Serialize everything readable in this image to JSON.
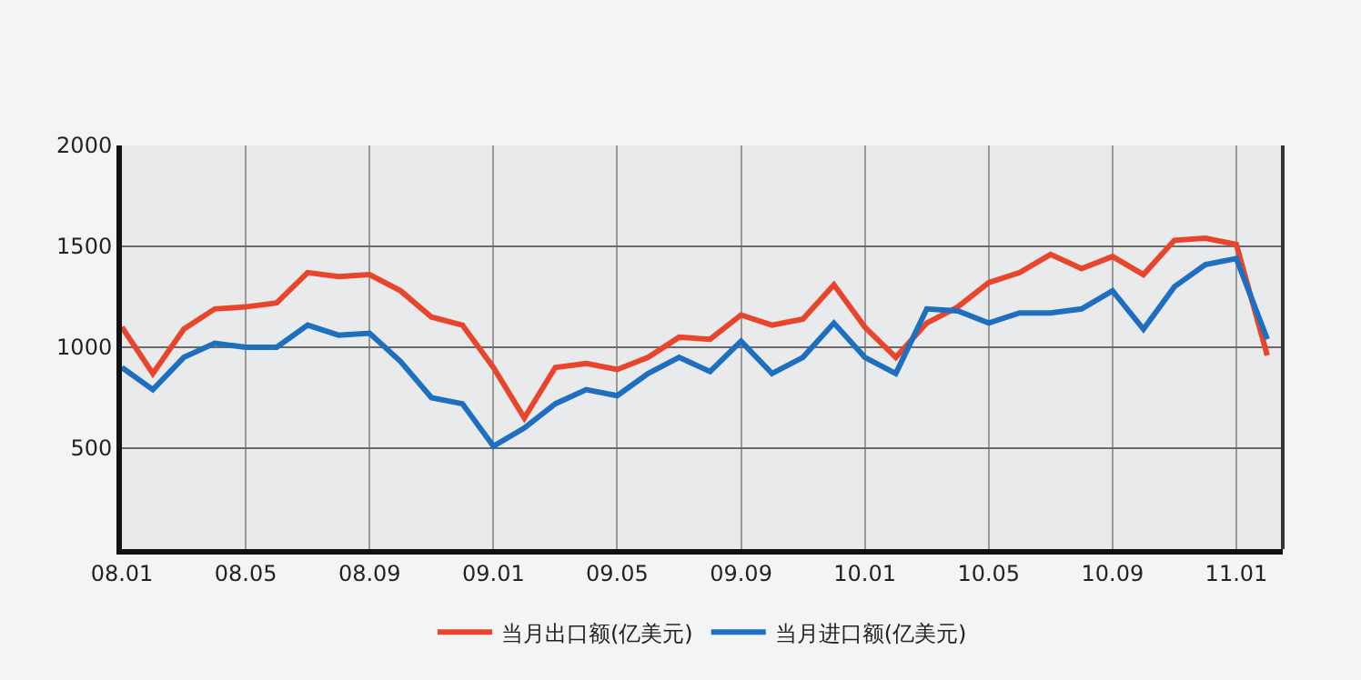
{
  "chart_data": {
    "type": "line",
    "categories": [
      "08.01",
      null,
      null,
      null,
      "08.05",
      null,
      null,
      null,
      "08.09",
      null,
      null,
      null,
      "09.01",
      null,
      null,
      null,
      "09.05",
      null,
      null,
      null,
      "09.09",
      null,
      null,
      null,
      "10.01",
      null,
      null,
      null,
      "10.05",
      null,
      null,
      null,
      "10.09",
      null,
      null,
      null,
      "11.01",
      null
    ],
    "series": [
      {
        "name": "当月出口额(亿美元)",
        "color": "#e8452c",
        "values": [
          1100,
          870,
          1090,
          1190,
          1200,
          1220,
          1370,
          1350,
          1360,
          1280,
          1150,
          1110,
          900,
          650,
          900,
          920,
          890,
          950,
          1050,
          1040,
          1160,
          1110,
          1140,
          1310,
          1100,
          950,
          1120,
          1200,
          1320,
          1370,
          1460,
          1390,
          1450,
          1360,
          1530,
          1540,
          1510,
          960
        ]
      },
      {
        "name": "当月进口额(亿美元)",
        "color": "#1f6fc1",
        "values": [
          900,
          790,
          950,
          1020,
          1000,
          1000,
          1110,
          1060,
          1070,
          930,
          750,
          720,
          510,
          600,
          720,
          790,
          760,
          870,
          950,
          880,
          1030,
          870,
          950,
          1120,
          950,
          870,
          1190,
          1180,
          1120,
          1170,
          1170,
          1190,
          1280,
          1090,
          1300,
          1410,
          1440,
          1040
        ]
      }
    ],
    "ylim": [
      0,
      2000
    ],
    "yticks": [
      500,
      1000,
      1500,
      2000
    ],
    "grid": true,
    "legend": "bottom",
    "marker": "none",
    "line_style": "solid"
  }
}
